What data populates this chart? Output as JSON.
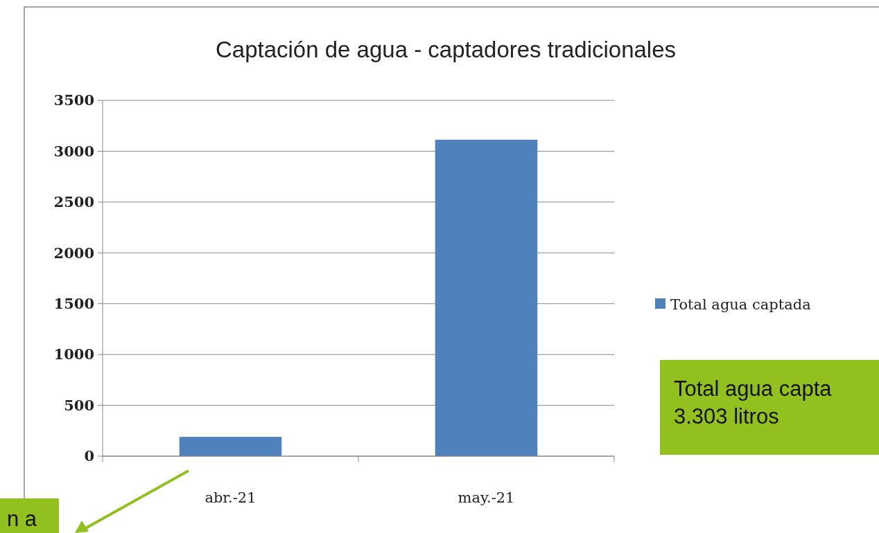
{
  "chart_data": {
    "type": "bar",
    "title": "Captación de agua - captadores tradicionales",
    "categories": [
      "abr.-21",
      "may.-21"
    ],
    "series": [
      {
        "name": "Total agua captada",
        "color": "#4f81bd",
        "values": [
          190,
          3113
        ]
      }
    ],
    "ylim": [
      0,
      3500
    ],
    "yticks": [
      0,
      500,
      1000,
      1500,
      2000,
      2500,
      3000,
      3500
    ],
    "grid": "y",
    "legend": "right",
    "annotations": [
      "Total agua capta\n3.303 litros",
      "n a"
    ]
  }
}
